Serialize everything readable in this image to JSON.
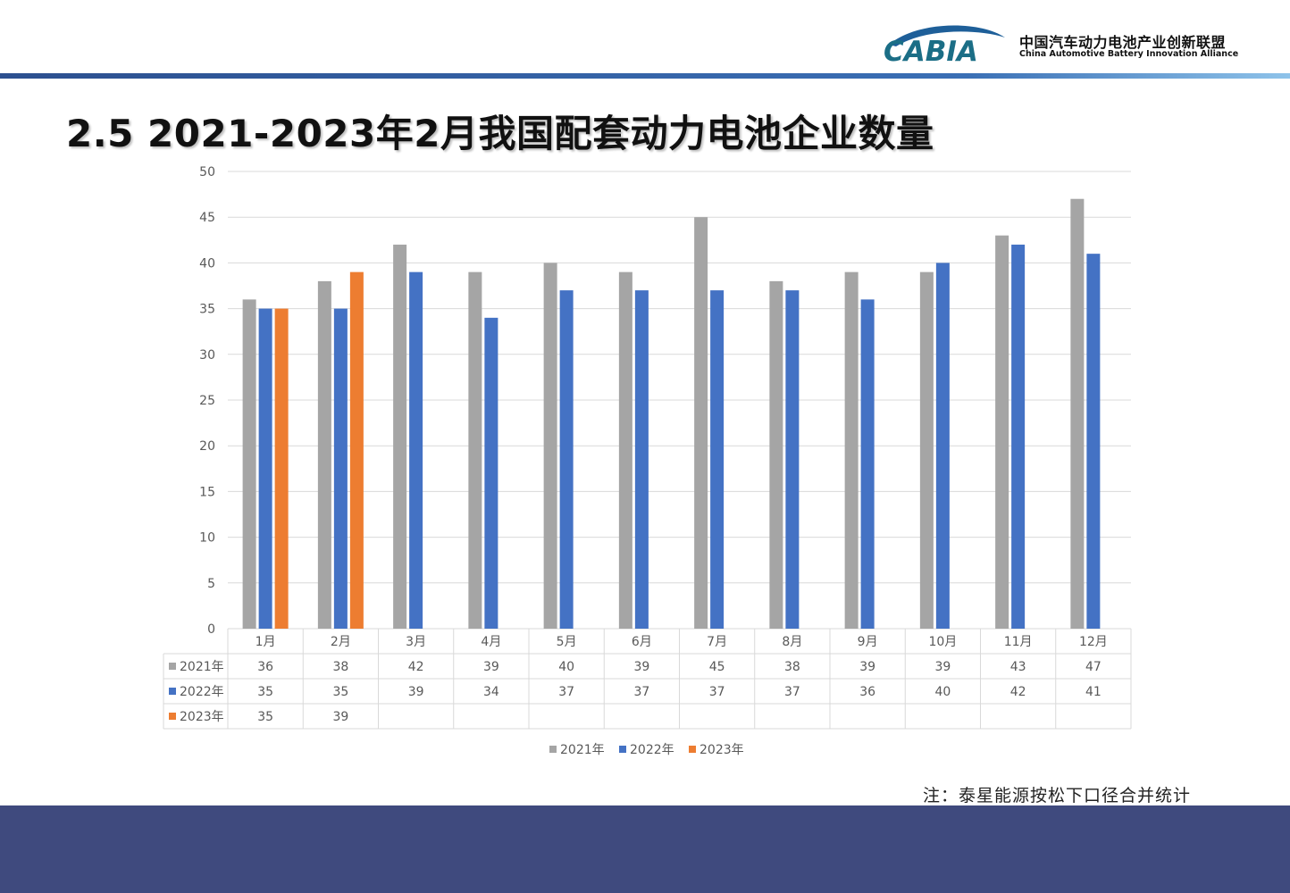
{
  "header": {
    "logo_text": "CABIA",
    "org_cn": "中国汽车动力电池产业创新联盟",
    "org_en": "China Automotive Battery Innovation Alliance"
  },
  "page_title": "2.5  2021-2023年2月我国配套动力电池企业数量",
  "footnote": "注：泰星能源按松下口径合并统计",
  "colors": {
    "accent": "#2c4f8f",
    "footer": "#3f4a7e"
  },
  "chart_data": {
    "type": "bar",
    "categories": [
      "1月",
      "2月",
      "3月",
      "4月",
      "5月",
      "6月",
      "7月",
      "8月",
      "9月",
      "10月",
      "11月",
      "12月"
    ],
    "series": [
      {
        "name": "2021年",
        "color": "#a5a5a5",
        "values": [
          36,
          38,
          42,
          39,
          40,
          39,
          45,
          38,
          39,
          39,
          43,
          47
        ]
      },
      {
        "name": "2022年",
        "color": "#4472c4",
        "values": [
          35,
          35,
          39,
          34,
          37,
          37,
          37,
          37,
          36,
          40,
          42,
          41
        ]
      },
      {
        "name": "2023年",
        "color": "#ed7d31",
        "values": [
          35,
          39,
          null,
          null,
          null,
          null,
          null,
          null,
          null,
          null,
          null,
          null
        ]
      }
    ],
    "ylim": [
      0,
      50
    ],
    "yticks": [
      0,
      5,
      10,
      15,
      20,
      25,
      30,
      35,
      40,
      45,
      50
    ],
    "grid": true,
    "legend": "bottom",
    "data_table": true
  }
}
